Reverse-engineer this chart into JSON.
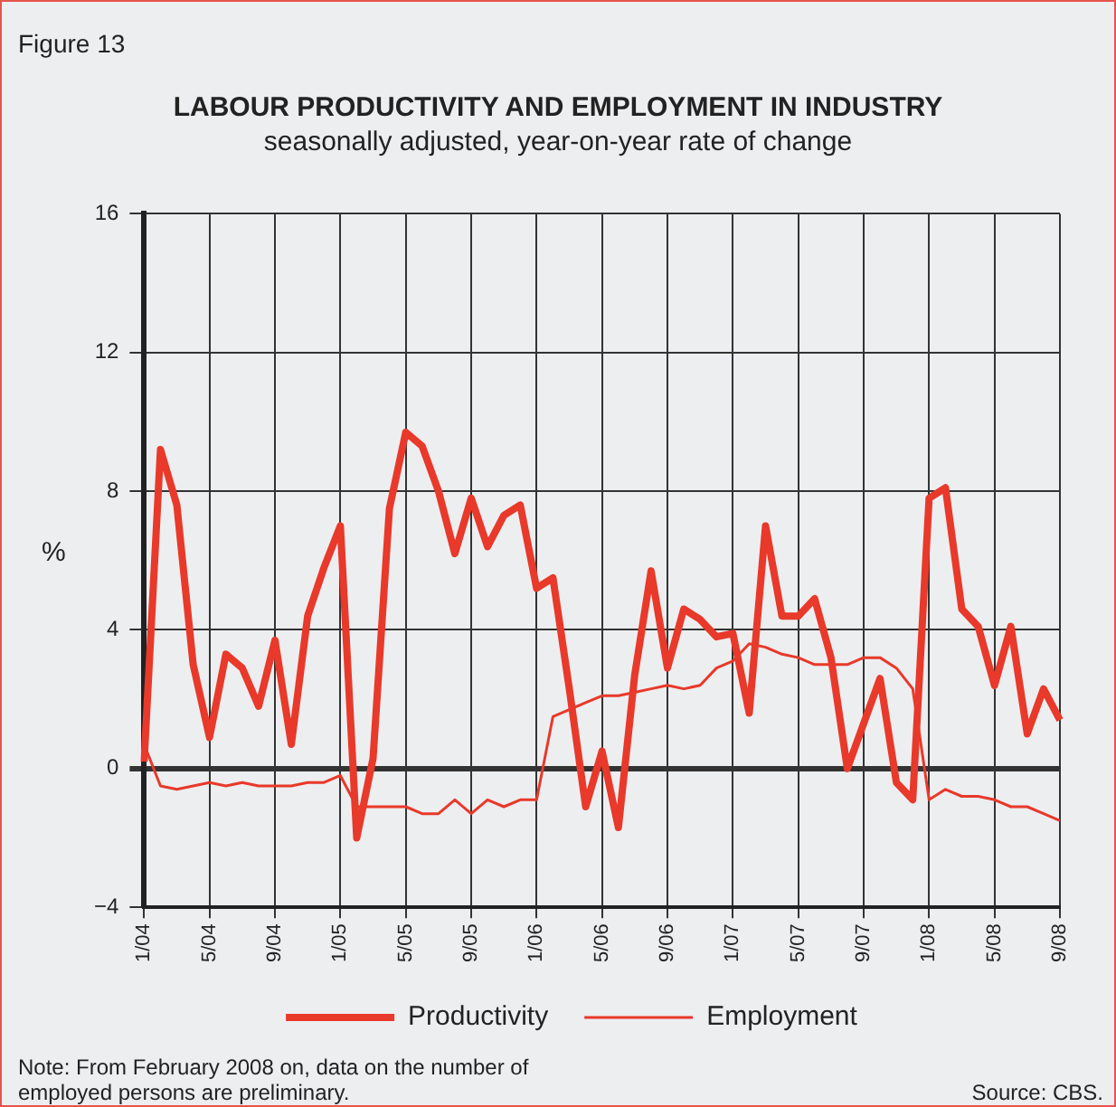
{
  "chart_data": {
    "type": "line",
    "title": "LABOUR PRODUCTIVITY AND EMPLOYMENT IN INDUSTRY",
    "subtitle": "seasonally adjusted, year-on-year rate of change",
    "ylabel": "%",
    "annotations": [
      "Figure 13",
      "Note: From February 2008 on, data on the number of employed persons are preliminary.",
      "Source: CBS."
    ],
    "categories": [
      "1/04",
      null,
      null,
      null,
      "5/04",
      null,
      null,
      null,
      "9/04",
      null,
      null,
      null,
      "1/05",
      null,
      null,
      null,
      "5/05",
      null,
      null,
      null,
      "9/05",
      null,
      null,
      null,
      "1/06",
      null,
      null,
      null,
      "5/06",
      null,
      null,
      null,
      "9/06",
      null,
      null,
      null,
      "1/07",
      null,
      null,
      null,
      "5/07",
      null,
      null,
      null,
      "9/07",
      null,
      null,
      null,
      "1/08",
      null,
      null,
      null,
      "5/08",
      null,
      null,
      null,
      "9/08"
    ],
    "series": [
      {
        "name": "Productivity",
        "color": "#e8392a",
        "values": [
          0.2,
          9.2,
          7.6,
          3.0,
          0.9,
          3.3,
          2.9,
          1.8,
          3.7,
          0.7,
          4.4,
          5.8,
          7.0,
          -2.0,
          0.3,
          7.5,
          9.7,
          9.3,
          8.0,
          6.2,
          7.8,
          6.4,
          7.3,
          7.6,
          5.2,
          5.5,
          2.3,
          -1.1,
          0.5,
          -1.7,
          2.7,
          5.7,
          2.9,
          4.6,
          4.3,
          3.8,
          3.9,
          1.6,
          7.0,
          4.4,
          4.4,
          4.9,
          3.2,
          0.0,
          1.3,
          2.6,
          -0.4,
          -0.9,
          7.8,
          8.1,
          4.6,
          4.1,
          2.4,
          4.1,
          1.0,
          2.3,
          1.4
        ]
      },
      {
        "name": "Employment",
        "color": "#e8392a",
        "values": [
          0.7,
          -0.5,
          -0.6,
          -0.5,
          -0.4,
          -0.5,
          -0.4,
          -0.5,
          -0.5,
          -0.5,
          -0.4,
          -0.4,
          -0.2,
          -1.1,
          -1.1,
          -1.1,
          -1.1,
          -1.3,
          -1.3,
          -0.9,
          -1.3,
          -0.9,
          -1.1,
          -0.9,
          -0.9,
          1.5,
          1.7,
          1.9,
          2.1,
          2.1,
          2.2,
          2.3,
          2.4,
          2.3,
          2.4,
          2.9,
          3.1,
          3.6,
          3.5,
          3.3,
          3.2,
          3.0,
          3.0,
          3.0,
          3.2,
          3.2,
          2.9,
          2.3,
          -0.9,
          -0.6,
          -0.8,
          -0.8,
          -0.9,
          -1.1,
          -1.1,
          -1.3,
          -1.5
        ]
      }
    ],
    "ylim": [
      -4,
      16
    ],
    "yticks": [
      {
        "value": -4,
        "label": "−4"
      },
      0,
      4,
      8,
      12,
      16
    ],
    "grid": true,
    "legend": "bottom",
    "marker": "none",
    "line_style": "solid"
  }
}
